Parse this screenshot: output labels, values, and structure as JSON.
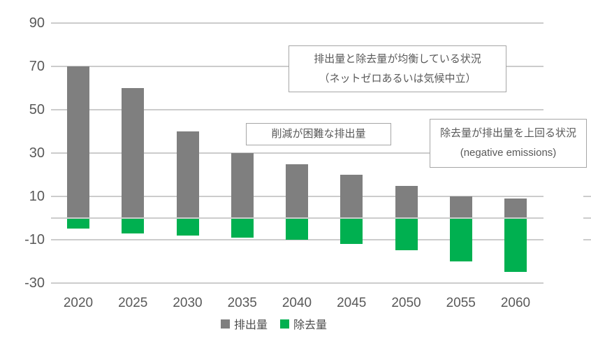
{
  "chart_data": {
    "type": "bar",
    "stacked": true,
    "title": "",
    "xlabel": "",
    "ylabel": "",
    "categories": [
      "2020",
      "2025",
      "2030",
      "2035",
      "2040",
      "2045",
      "2050",
      "2055",
      "2060"
    ],
    "series": [
      {
        "name": "排出量",
        "color": "#7f7f7f",
        "values": [
          70,
          60,
          40,
          30,
          25,
          20,
          15,
          10,
          9
        ]
      },
      {
        "name": "除去量",
        "color": "#00b050",
        "values": [
          -5,
          -7,
          -8,
          -9,
          -10,
          -12,
          -15,
          -20,
          -25
        ]
      }
    ],
    "ylim": [
      -30,
      90
    ],
    "ytick_labels": [
      "90",
      "70",
      "50",
      "30",
      "10",
      "-10",
      "-30"
    ],
    "grid": true,
    "legend_position": "bottom",
    "annotations": [
      {
        "id": "net-zero",
        "lines": [
          "排出量と除去量が均衡している状況",
          "（ネットゼロあるいは気候中立）"
        ]
      },
      {
        "id": "hard-to-abate",
        "lines": [
          "削減が困難な排出量"
        ]
      },
      {
        "id": "negative-emissions",
        "lines": [
          "除去量が排出量を上回る状況",
          "(negative emissions)"
        ]
      }
    ]
  },
  "colors": {
    "background": "#ffffff",
    "gridline": "#cccccc",
    "axis_text": "#595959",
    "annotation_text": "#595959",
    "annotation_border": "#a6a6a6",
    "emissions_bar": "#7f7f7f",
    "removals_bar": "#00b050"
  }
}
